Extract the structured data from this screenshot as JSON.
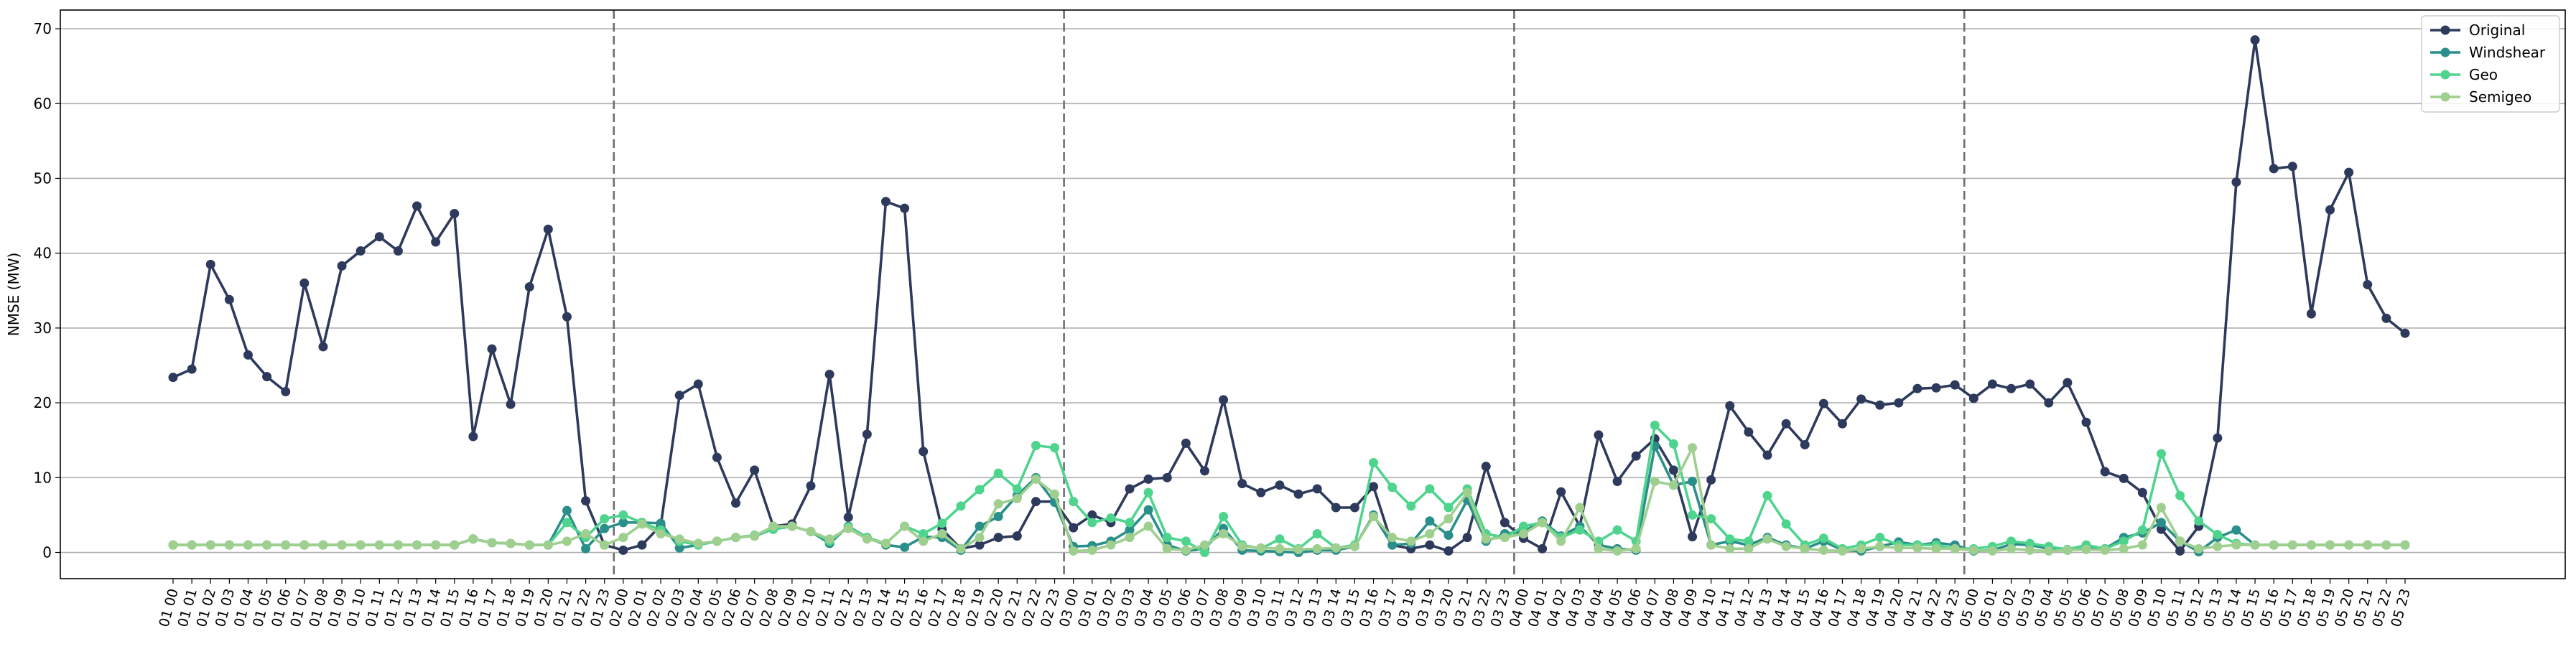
{
  "chart_data": {
    "type": "line",
    "ylabel": "NMSE (MW)",
    "ylim": [
      -3.5,
      72.5
    ],
    "yticks": [
      0,
      10,
      20,
      30,
      40,
      50,
      60,
      70
    ],
    "grid": "horizontal",
    "legend_position": "top-right",
    "categories": [
      "01 00",
      "01 01",
      "01 02",
      "01 03",
      "01 04",
      "01 05",
      "01 06",
      "01 07",
      "01 08",
      "01 09",
      "01 10",
      "01 11",
      "01 12",
      "01 13",
      "01 14",
      "01 15",
      "01 16",
      "01 17",
      "01 18",
      "01 19",
      "01 20",
      "01 21",
      "01 22",
      "01 23",
      "02 00",
      "02 01",
      "02 02",
      "02 03",
      "02 04",
      "02 05",
      "02 06",
      "02 07",
      "02 08",
      "02 09",
      "02 10",
      "02 11",
      "02 12",
      "02 13",
      "02 14",
      "02 15",
      "02 16",
      "02 17",
      "02 18",
      "02 19",
      "02 20",
      "02 21",
      "02 22",
      "02 23",
      "03 00",
      "03 01",
      "03 02",
      "03 03",
      "03 04",
      "03 05",
      "03 06",
      "03 07",
      "03 08",
      "03 09",
      "03 10",
      "03 11",
      "03 12",
      "03 13",
      "03 14",
      "03 15",
      "03 16",
      "03 17",
      "03 18",
      "03 19",
      "03 20",
      "03 21",
      "03 22",
      "03 23",
      "04 00",
      "04 01",
      "04 02",
      "04 03",
      "04 04",
      "04 05",
      "04 06",
      "04 07",
      "04 08",
      "04 09",
      "04 10",
      "04 11",
      "04 12",
      "04 13",
      "04 14",
      "04 15",
      "04 16",
      "04 17",
      "04 18",
      "04 19",
      "04 20",
      "04 21",
      "04 22",
      "04 23",
      "05 00",
      "05 01",
      "05 02",
      "05 03",
      "05 04",
      "05 05",
      "05 06",
      "05 07",
      "05 08",
      "05 09",
      "05 10",
      "05 11",
      "05 12",
      "05 13",
      "05 14",
      "05 15",
      "05 16",
      "05 17",
      "05 18",
      "05 19",
      "05 20",
      "05 21",
      "05 22",
      "05 23"
    ],
    "day_separators_after": [
      "01 23",
      "02 23",
      "03 23",
      "04 23"
    ],
    "series": [
      {
        "name": "Original",
        "color": "#2d3a5c",
        "values": [
          23.4,
          24.5,
          38.5,
          33.8,
          26.4,
          23.5,
          21.5,
          36.0,
          27.5,
          38.3,
          40.3,
          42.2,
          40.3,
          46.3,
          41.5,
          45.3,
          15.5,
          27.2,
          19.8,
          35.5,
          43.2,
          31.5,
          6.9,
          1.0,
          0.3,
          1.0,
          3.6,
          21.0,
          22.5,
          12.7,
          6.6,
          11.0,
          3.5,
          3.8,
          8.9,
          23.8,
          4.7,
          15.8,
          46.9,
          46.0,
          13.5,
          3.1,
          0.5,
          1.0,
          2.0,
          2.2,
          6.8,
          6.8,
          3.3,
          5.0,
          4.0,
          8.5,
          9.8,
          10.0,
          14.6,
          10.9,
          20.4,
          9.2,
          8.0,
          9.0,
          7.8,
          8.5,
          6.0,
          6.0,
          8.8,
          1.0,
          0.5,
          1.0,
          0.2,
          2.0,
          11.5,
          4.0,
          1.9,
          0.5,
          8.1,
          3.5,
          15.7,
          9.5,
          12.9,
          15.2,
          11.0,
          2.1,
          9.7,
          19.6,
          16.1,
          13.0,
          17.2,
          14.4,
          19.9,
          17.2,
          20.5,
          19.7,
          20.0,
          21.9,
          22.0,
          22.4,
          20.6,
          22.5,
          21.9,
          22.5,
          20.0,
          22.7,
          17.4,
          10.8,
          9.9,
          8.0,
          3.1,
          0.2,
          3.5,
          15.3,
          49.5,
          68.5,
          51.3,
          51.6,
          31.9,
          45.8,
          50.8,
          35.8,
          31.3,
          29.3
        ]
      },
      {
        "name": "Windshear",
        "color": "#2a8f8a",
        "values": [
          1.0,
          1.0,
          1.0,
          1.0,
          1.0,
          1.0,
          1.0,
          1.0,
          1.0,
          1.0,
          1.0,
          1.0,
          1.0,
          1.0,
          1.0,
          1.0,
          1.8,
          1.3,
          1.2,
          1.0,
          1.0,
          5.6,
          0.5,
          3.2,
          4.0,
          4.0,
          3.9,
          0.6,
          1.0,
          1.5,
          2.0,
          2.2,
          3.1,
          3.5,
          2.8,
          1.2,
          3.5,
          2.0,
          1.0,
          0.7,
          2.1,
          2.0,
          0.3,
          3.5,
          4.8,
          7.6,
          10.0,
          6.7,
          0.8,
          0.9,
          1.5,
          3.0,
          5.7,
          1.0,
          0.2,
          0.5,
          3.2,
          0.3,
          0.2,
          0.1,
          0.0,
          0.3,
          0.3,
          0.8,
          5.0,
          1.0,
          1.2,
          4.2,
          2.3,
          7.0,
          1.5,
          2.5,
          2.8,
          4.2,
          2.2,
          3.5,
          1.0,
          0.5,
          0.3,
          14.2,
          9.0,
          9.5,
          1.0,
          1.5,
          1.0,
          2.0,
          1.0,
          0.5,
          1.5,
          0.3,
          0.2,
          0.8,
          1.4,
          1.0,
          1.3,
          1.0,
          0.2,
          0.3,
          1.1,
          1.0,
          0.5,
          0.3,
          0.5,
          0.5,
          2.0,
          2.6,
          4.0,
          1.5,
          0.1,
          2.0,
          3.0,
          1.0,
          1.0,
          1.0,
          1.0,
          1.0,
          1.0,
          1.0,
          1.0,
          1.0
        ]
      },
      {
        "name": "Geo",
        "color": "#4fd48e",
        "values": [
          1.0,
          1.0,
          1.0,
          1.0,
          1.0,
          1.0,
          1.0,
          1.0,
          1.0,
          1.0,
          1.0,
          1.0,
          1.0,
          1.0,
          1.0,
          1.0,
          1.8,
          1.3,
          1.2,
          1.0,
          1.0,
          4.0,
          2.0,
          4.5,
          5.0,
          4.0,
          3.0,
          1.5,
          1.0,
          1.5,
          2.0,
          2.3,
          3.1,
          3.5,
          2.8,
          1.5,
          3.4,
          2.0,
          1.2,
          3.5,
          2.5,
          3.9,
          6.2,
          8.4,
          10.6,
          8.5,
          14.3,
          14.0,
          6.8,
          4.0,
          4.6,
          4.0,
          8.0,
          2.0,
          1.5,
          0.0,
          4.8,
          1.0,
          0.5,
          1.8,
          0.5,
          2.5,
          0.6,
          1.0,
          12.0,
          8.7,
          6.2,
          8.5,
          6.0,
          8.5,
          2.5,
          2.0,
          3.5,
          4.0,
          2.0,
          3.0,
          1.5,
          3.0,
          1.5,
          17.0,
          14.5,
          5.0,
          4.5,
          1.8,
          1.5,
          7.6,
          3.8,
          1.0,
          1.9,
          0.5,
          1.0,
          2.0,
          1.0,
          1.0,
          1.0,
          0.5,
          0.5,
          0.8,
          1.5,
          1.2,
          0.8,
          0.4,
          1.0,
          0.5,
          1.5,
          3.0,
          13.2,
          7.6,
          4.2,
          2.4,
          1.2,
          1.0,
          1.0,
          1.0,
          1.0,
          1.0,
          1.0,
          1.0,
          1.0,
          1.0
        ]
      },
      {
        "name": "Semigeo",
        "color": "#9fcf8f",
        "values": [
          1.0,
          1.0,
          1.0,
          1.0,
          1.0,
          1.0,
          1.0,
          1.0,
          1.0,
          1.0,
          1.0,
          1.0,
          1.0,
          1.0,
          1.0,
          1.0,
          1.8,
          1.3,
          1.2,
          1.0,
          1.0,
          1.5,
          2.5,
          1.0,
          2.0,
          3.8,
          2.5,
          1.8,
          1.2,
          1.5,
          2.0,
          2.2,
          3.5,
          3.5,
          2.8,
          1.8,
          3.2,
          1.8,
          1.2,
          3.5,
          1.5,
          2.5,
          0.5,
          2.0,
          6.5,
          7.2,
          9.8,
          7.8,
          0.2,
          0.3,
          1.0,
          2.0,
          3.5,
          0.5,
          0.3,
          1.0,
          2.5,
          0.8,
          0.6,
          0.5,
          0.4,
          0.5,
          0.6,
          0.8,
          4.8,
          2.0,
          1.5,
          2.5,
          4.5,
          8.0,
          1.8,
          2.0,
          2.5,
          4.0,
          1.5,
          6.0,
          0.5,
          0.2,
          0.5,
          9.5,
          9.0,
          14.0,
          1.0,
          0.5,
          0.5,
          1.8,
          0.8,
          0.5,
          0.3,
          0.2,
          0.5,
          0.8,
          0.6,
          0.6,
          0.5,
          0.5,
          0.3,
          0.2,
          0.5,
          0.3,
          0.2,
          0.3,
          0.4,
          0.3,
          0.5,
          1.0,
          6.0,
          1.5,
          0.5,
          0.8,
          1.0,
          1.0,
          1.0,
          1.0,
          1.0,
          1.0,
          1.0,
          1.0,
          1.0,
          1.0
        ]
      }
    ]
  }
}
